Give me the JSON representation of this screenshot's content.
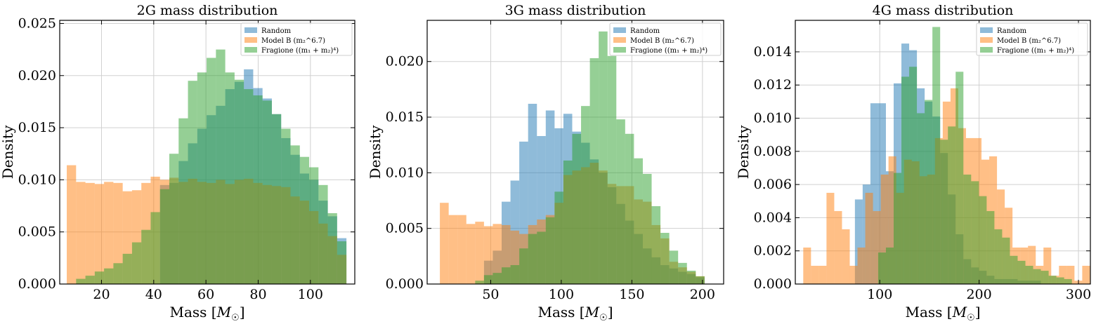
{
  "figure": {
    "legend_labels": [
      "Random",
      "Model B (m₂^6.7)",
      "Fragione ((m₁ + m₂)⁴)"
    ],
    "colors": {
      "random": "#1f77b4",
      "modelb": "#ff7f0e",
      "fragione": "#2ca02c"
    }
  },
  "chart_data": [
    {
      "type": "bar",
      "title": "2G mass distribution",
      "xlabel": "Mass [M☉]",
      "ylabel": "Density",
      "xlim": [
        4,
        117
      ],
      "ylim": [
        0,
        0.0253
      ],
      "xticks": [
        20,
        40,
        60,
        80,
        100
      ],
      "yticks": [
        0.0,
        0.005,
        0.01,
        0.015,
        0.02,
        0.025
      ],
      "ytick_labels": [
        "0.000",
        "0.005",
        "0.010",
        "0.015",
        "0.020",
        "0.025"
      ],
      "grid": true,
      "legend_position": "top-right",
      "series": [
        {
          "name": "Random",
          "color": "#1f77b4",
          "bin_start": 6.7,
          "bin_width": 3.57,
          "values": [
            0.0,
            0.0,
            0.0,
            0.0,
            0.0,
            0.0,
            0.0,
            0.0,
            0.0,
            0.0,
            0.0095,
            0.0097,
            0.0118,
            0.0135,
            0.0149,
            0.0162,
            0.0171,
            0.0187,
            0.0194,
            0.0206,
            0.0188,
            0.0178,
            0.0163,
            0.014,
            0.0124,
            0.0106,
            0.01,
            0.008,
            0.0065,
            0.0044
          ]
        },
        {
          "name": "Model B (m₂^6.7)",
          "color": "#ff7f0e",
          "bin_start": 6.7,
          "bin_width": 3.57,
          "values": [
            0.0114,
            0.0098,
            0.0097,
            0.0096,
            0.0098,
            0.0097,
            0.0089,
            0.009,
            0.0097,
            0.0103,
            0.01,
            0.0102,
            0.0098,
            0.0101,
            0.0098,
            0.0097,
            0.01,
            0.0096,
            0.01,
            0.0101,
            0.0097,
            0.0095,
            0.0094,
            0.0093,
            0.0084,
            0.008,
            0.007,
            0.0058,
            0.0046,
            0.0028
          ]
        },
        {
          "name": "Fragione ((m₁ + m₂)⁴)",
          "color": "#2ca02c",
          "bin_start": 6.7,
          "bin_width": 3.57,
          "values": [
            0.0,
            0.0005,
            0.0008,
            0.0012,
            0.0015,
            0.002,
            0.0029,
            0.004,
            0.0052,
            0.0069,
            0.0091,
            0.0125,
            0.0159,
            0.0195,
            0.0203,
            0.0217,
            0.0225,
            0.0203,
            0.0196,
            0.0187,
            0.0181,
            0.0176,
            0.0163,
            0.0149,
            0.0133,
            0.0122,
            0.0112,
            0.0095,
            0.0068,
            0.0041
          ]
        }
      ]
    },
    {
      "type": "bar",
      "title": "3G mass distribution",
      "xlabel": "Mass [M☉]",
      "ylabel": "Density",
      "xlim": [
        5,
        215
      ],
      "ylim": [
        0,
        0.0237
      ],
      "xticks": [
        50,
        100,
        150,
        200
      ],
      "yticks": [
        0.0,
        0.005,
        0.01,
        0.015,
        0.02
      ],
      "ytick_labels": [
        "0.000",
        "0.005",
        "0.010",
        "0.015",
        "0.020"
      ],
      "grid": true,
      "legend_position": "top-right",
      "series": [
        {
          "name": "Random",
          "color": "#1f77b4",
          "bin_start": 14,
          "bin_width": 6.25,
          "values": [
            0.0,
            0.0,
            0.0,
            0.0,
            0.0,
            0.0021,
            0.003,
            0.0074,
            0.0093,
            0.0128,
            0.0162,
            0.0133,
            0.0156,
            0.014,
            0.0153,
            0.0137,
            0.0127,
            0.0112,
            0.01,
            0.0087,
            0.0072,
            0.0057,
            0.0045,
            0.0032,
            0.0024,
            0.0017,
            0.0014,
            0.0011,
            0.0009,
            0.0006
          ]
        },
        {
          "name": "Model B (m₂^6.7)",
          "color": "#ff7f0e",
          "bin_start": 14,
          "bin_width": 6.25,
          "values": [
            0.0073,
            0.0062,
            0.0062,
            0.0054,
            0.0056,
            0.0052,
            0.0054,
            0.0053,
            0.0048,
            0.0045,
            0.0053,
            0.0058,
            0.0062,
            0.0073,
            0.0098,
            0.0102,
            0.0105,
            0.0109,
            0.0102,
            0.009,
            0.0088,
            0.0088,
            0.0076,
            0.0074,
            0.0053,
            0.0041,
            0.002,
            0.0015,
            0.0011,
            0.0007
          ]
        },
        {
          "name": "Fragione ((m₁ + m₂)⁴)",
          "color": "#2ca02c",
          "bin_start": 14,
          "bin_width": 6.25,
          "values": [
            0.0,
            0.0,
            0.0,
            0.0,
            0.0003,
            0.0008,
            0.001,
            0.0015,
            0.0017,
            0.0032,
            0.0045,
            0.0047,
            0.006,
            0.0083,
            0.0111,
            0.0135,
            0.016,
            0.0203,
            0.0227,
            0.0205,
            0.0148,
            0.0135,
            0.0113,
            0.0099,
            0.007,
            0.0046,
            0.003,
            0.0019,
            0.0012,
            0.0007
          ]
        }
      ]
    },
    {
      "type": "bar",
      "title": "4G mass distribution",
      "xlabel": "Mass [M☉]",
      "ylabel": "Density",
      "xlim": [
        15,
        312
      ],
      "ylim": [
        0,
        0.0159
      ],
      "xticks": [
        100,
        200,
        300
      ],
      "yticks": [
        0.0,
        0.002,
        0.004,
        0.006,
        0.008,
        0.01,
        0.012,
        0.014
      ],
      "ytick_labels": [
        "0.000",
        "0.002",
        "0.004",
        "0.006",
        "0.008",
        "0.010",
        "0.012",
        "0.014"
      ],
      "grid": true,
      "legend_position": "top-right",
      "series": [
        {
          "name": "Random",
          "color": "#1f77b4",
          "bin_start": 75,
          "bin_width": 7.8,
          "values": [
            0.0051,
            0.006,
            0.0109,
            0.0109,
            0.0068,
            0.0121,
            0.0145,
            0.0141,
            0.0118,
            0.011,
            0.0101,
            0.0079,
            0.0054,
            0.003,
            0.0015,
            0.001,
            0.0008,
            0.0005,
            0.0003,
            0.0003,
            0.0003,
            0.0002,
            0.0002,
            0.0002
          ]
        },
        {
          "name": "Model B (m₂^6.7)",
          "color": "#ff7f0e",
          "bin_start": 23,
          "bin_width": 7.8,
          "values": [
            0.0022,
            0.0011,
            0.0011,
            0.0055,
            0.0044,
            0.0033,
            0.0011,
            0.0022,
            0.0055,
            0.0044,
            0.0066,
            0.0077,
            0.0055,
            0.0075,
            0.0074,
            0.0065,
            0.0066,
            0.0088,
            0.011,
            0.0118,
            0.0094,
            0.0088,
            0.0088,
            0.0075,
            0.0077,
            0.0057,
            0.0046,
            0.0022,
            0.0022,
            0.0023,
            0.0011,
            0.0022,
            0.0005,
            0.0011,
            0.0011,
            0.0002,
            0.0011
          ]
        },
        {
          "name": "Fragione ((m₁ + m₂)⁴)",
          "color": "#2ca02c",
          "bin_start": 75,
          "bin_width": 7.8,
          "values": [
            0.0,
            0.0,
            0.0,
            0.0019,
            0.0022,
            0.0067,
            0.0125,
            0.0131,
            0.0103,
            0.0111,
            0.0155,
            0.0087,
            0.0095,
            0.0128,
            0.0066,
            0.0062,
            0.0053,
            0.0044,
            0.0033,
            0.0028,
            0.0017,
            0.0014,
            0.0011,
            0.0009,
            0.0008,
            0.0005,
            0.0004,
            0.0003
          ]
        }
      ]
    }
  ]
}
